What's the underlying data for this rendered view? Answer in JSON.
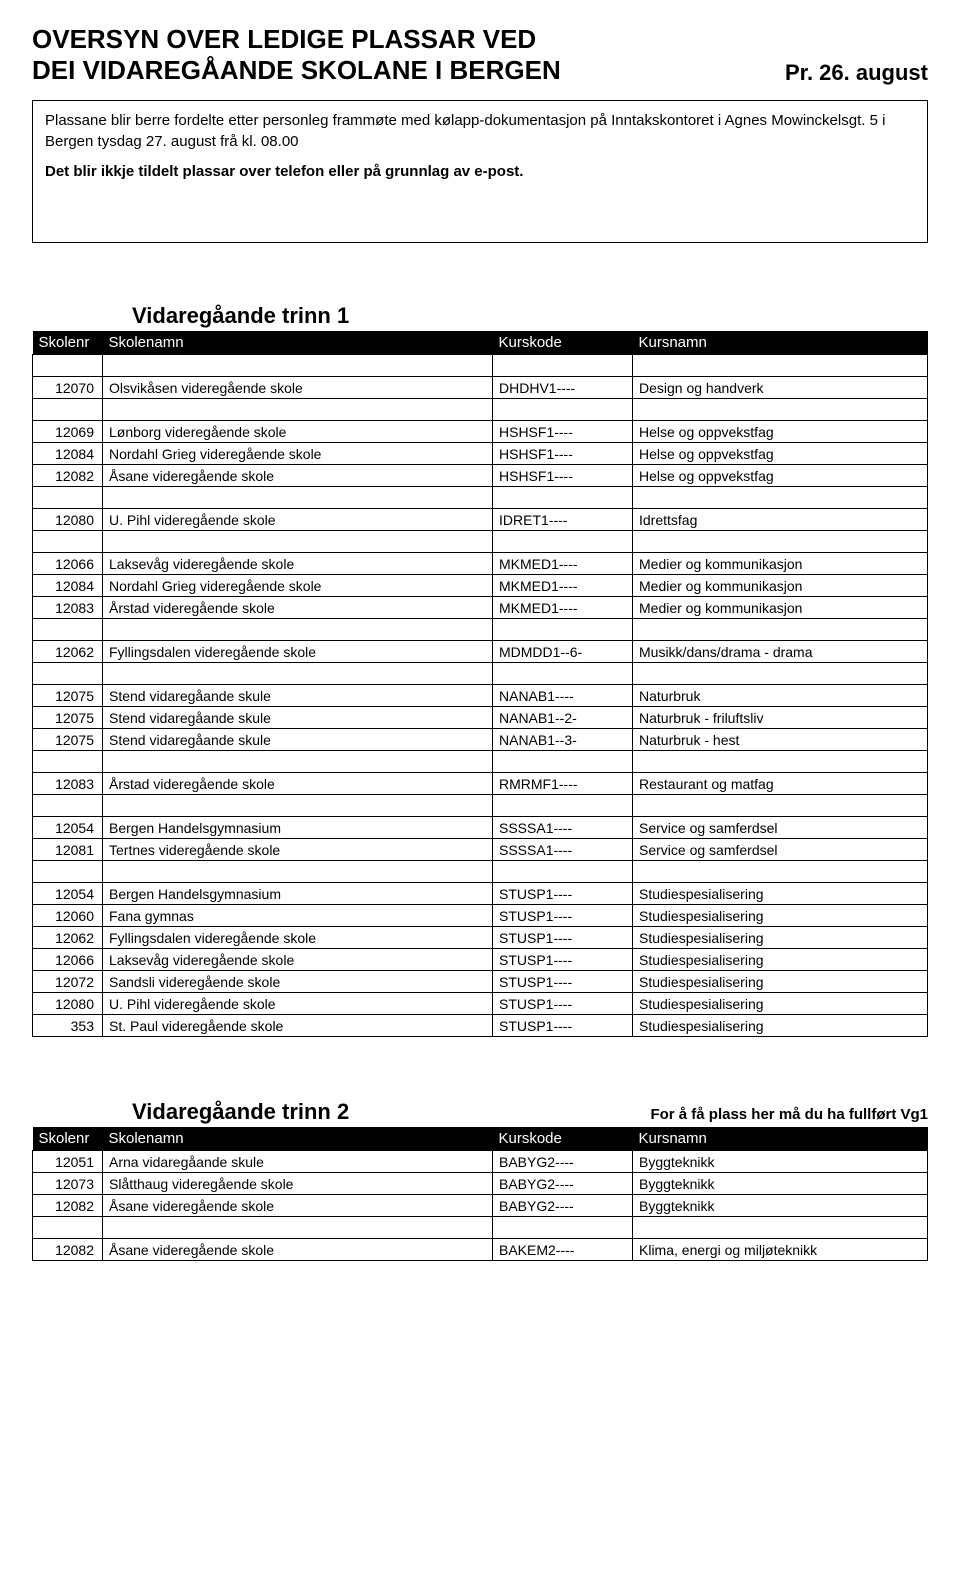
{
  "header": {
    "line1": "OVERSYN OVER LEDIGE PLASSAR VED",
    "line2": "DEI VIDAREGÅANDE SKOLANE I BERGEN",
    "date": "Pr. 26. august"
  },
  "info": {
    "p1": "Plassane blir berre fordelte etter personleg frammøte med kølapp-dokumentasjon på Inntakskontoret i Agnes Mowinckelsgt. 5 i Bergen tysdag 27. august frå kl. 08.00",
    "p2": "Det blir ikkje tildelt plassar over telefon eller på grunnlag av e-post."
  },
  "colors": {
    "header_bg": "#000000",
    "header_fg": "#ffffff",
    "border": "#000000",
    "page_bg": "#ffffff"
  },
  "sections": [
    {
      "heading": "Vidaregåande trinn 1",
      "note": "",
      "columns": [
        "Skolenr",
        "Skolenamn",
        "Kurskode",
        "Kursnamn"
      ],
      "groups": [
        [
          [
            "12070",
            "Olsvikåsen videregående skole",
            "DHDHV1----",
            "Design og handverk"
          ]
        ],
        [
          [
            "12069",
            "Lønborg videregående skole",
            "HSHSF1----",
            "Helse og oppvekstfag"
          ],
          [
            "12084",
            "Nordahl Grieg videregående skole",
            "HSHSF1----",
            "Helse og oppvekstfag"
          ],
          [
            "12082",
            "Åsane videregående skole",
            "HSHSF1----",
            "Helse og oppvekstfag"
          ]
        ],
        [
          [
            "12080",
            "U. Pihl videregående skole",
            "IDRET1----",
            "Idrettsfag"
          ]
        ],
        [
          [
            "12066",
            "Laksevåg videregående skole",
            "MKMED1----",
            "Medier og kommunikasjon"
          ],
          [
            "12084",
            "Nordahl Grieg videregående skole",
            "MKMED1----",
            "Medier og kommunikasjon"
          ],
          [
            "12083",
            "Årstad videregående skole",
            "MKMED1----",
            "Medier og kommunikasjon"
          ]
        ],
        [
          [
            "12062",
            "Fyllingsdalen videregående skole",
            "MDMDD1--6-",
            "Musikk/dans/drama - drama"
          ]
        ],
        [
          [
            "12075",
            "Stend vidaregåande skule",
            "NANAB1----",
            "Naturbruk"
          ],
          [
            "12075",
            "Stend vidaregåande skule",
            "NANAB1--2-",
            "Naturbruk - friluftsliv"
          ],
          [
            "12075",
            "Stend vidaregåande skule",
            "NANAB1--3-",
            "Naturbruk - hest"
          ]
        ],
        [
          [
            "12083",
            "Årstad videregående skole",
            "RMRMF1----",
            "Restaurant og matfag"
          ]
        ],
        [
          [
            "12054",
            "Bergen Handelsgymnasium",
            "SSSSA1----",
            "Service og samferdsel"
          ],
          [
            "12081",
            "Tertnes videregående skole",
            "SSSSA1----",
            "Service og samferdsel"
          ]
        ],
        [
          [
            "12054",
            "Bergen Handelsgymnasium",
            "STUSP1----",
            "Studiespesialisering"
          ],
          [
            "12060",
            "Fana gymnas",
            "STUSP1----",
            "Studiespesialisering"
          ],
          [
            "12062",
            "Fyllingsdalen videregående skole",
            "STUSP1----",
            "Studiespesialisering"
          ],
          [
            "12066",
            "Laksevåg videregående skole",
            "STUSP1----",
            "Studiespesialisering"
          ],
          [
            "12072",
            "Sandsli videregående skole",
            "STUSP1----",
            "Studiespesialisering"
          ],
          [
            "12080",
            "U. Pihl videregående skole",
            "STUSP1----",
            "Studiespesialisering"
          ],
          [
            "353",
            "St. Paul videregående skole",
            "STUSP1----",
            "Studiespesialisering"
          ]
        ]
      ]
    },
    {
      "heading": "Vidaregåande trinn 2",
      "note": "For å få plass her må du ha fullført Vg1",
      "columns": [
        "Skolenr",
        "Skolenamn",
        "Kurskode",
        "Kursnamn"
      ],
      "groups": [
        [
          [
            "12051",
            "Arna vidaregåande skule",
            "BABYG2----",
            "Byggteknikk"
          ],
          [
            "12073",
            "Slåtthaug videregående skole",
            "BABYG2----",
            "Byggteknikk"
          ],
          [
            "12082",
            "Åsane videregående skole",
            "BABYG2----",
            "Byggteknikk"
          ]
        ],
        [
          [
            "12082",
            "Åsane videregående skole",
            "BAKEM2----",
            "Klima, energi og miljøteknikk"
          ]
        ]
      ]
    }
  ]
}
